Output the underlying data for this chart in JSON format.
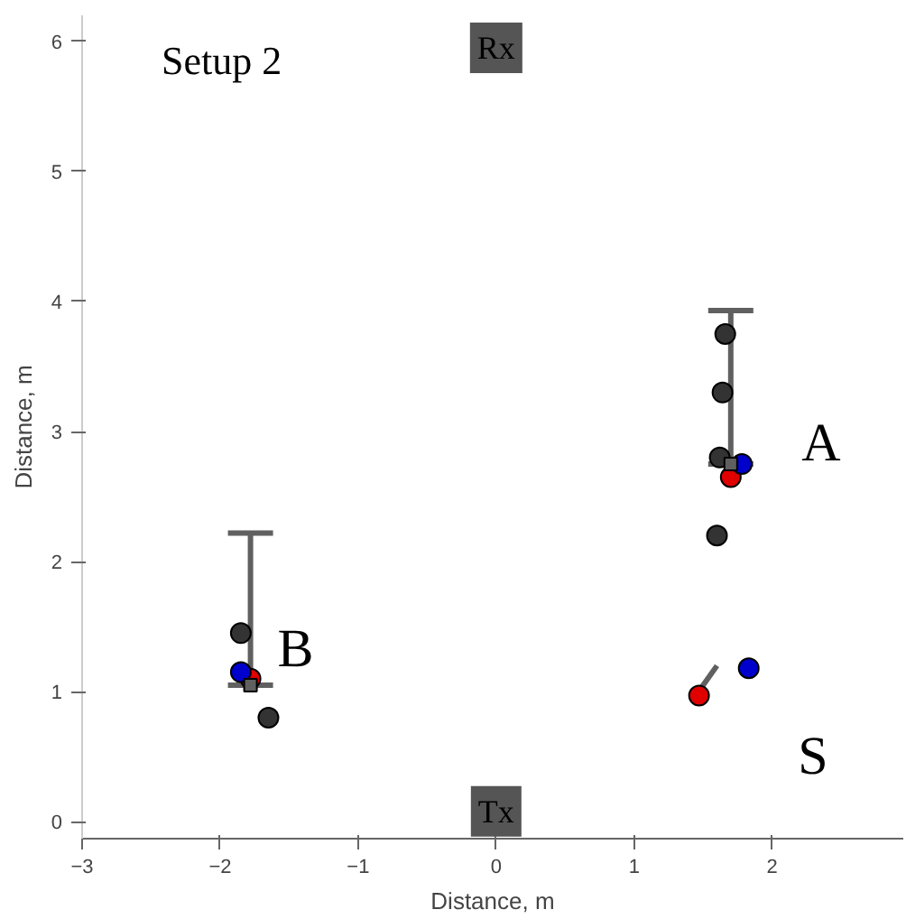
{
  "chart_data": {
    "type": "scatter",
    "xlabel": "Distance, m",
    "ylabel": "Distance, m",
    "xlim": [
      -3,
      2.95
    ],
    "ylim": [
      -0.13,
      6.2
    ],
    "xticks": [
      -3,
      -2,
      -1,
      0,
      1,
      2
    ],
    "yticks": [
      0,
      1,
      2,
      3,
      4,
      5,
      6
    ],
    "grid": false,
    "marker": "circle",
    "series": [
      {
        "color": "#333333",
        "x": [
          1.6,
          1.62,
          1.64,
          1.66,
          -1.85,
          -1.65
        ],
        "values": [
          2.2,
          2.8,
          3.3,
          3.75,
          1.45,
          0.8
        ]
      },
      {
        "type": "line",
        "marker": "none",
        "color": "#606060",
        "x": [
          1.48,
          1.6
        ],
        "values": [
          1.02,
          1.2
        ]
      },
      {
        "color": "#e00000",
        "x": [
          1.7,
          -1.78,
          1.47
        ],
        "values": [
          2.65,
          1.1,
          0.97
        ]
      },
      {
        "color": "#0000cc",
        "x": [
          1.78,
          -1.85,
          1.83
        ],
        "values": [
          2.75,
          1.15,
          1.18
        ]
      },
      {
        "color": "#606060",
        "marker": "square",
        "x": [
          1.7,
          -1.78
        ],
        "values": [
          2.75,
          1.05
        ],
        "errors": [
          [
            2.75,
            3.93
          ],
          [
            1.05,
            2.22
          ]
        ]
      }
    ],
    "annotations": [
      "Setup 2",
      {
        "text": "Rx",
        "x": 0,
        "y": 5.95
      },
      {
        "text": "Tx",
        "x": 0,
        "y": 0.08
      },
      "A",
      "B",
      "S"
    ]
  }
}
